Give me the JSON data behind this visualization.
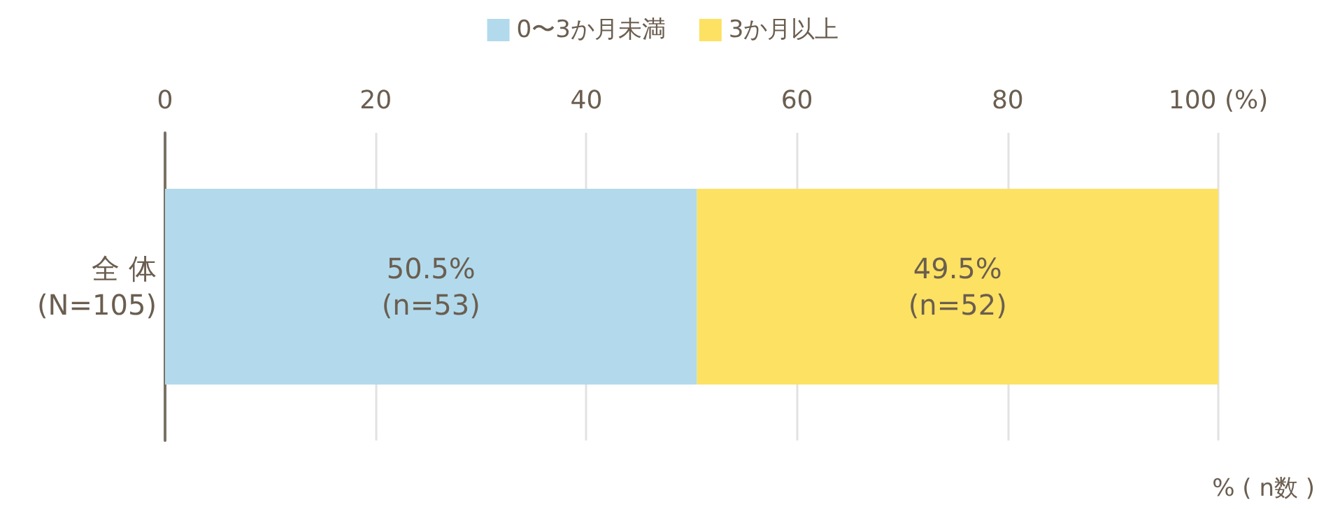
{
  "chart_data": {
    "type": "bar",
    "orientation": "horizontal",
    "stacked": true,
    "categories": [
      "全 体\n(N=105)"
    ],
    "series": [
      {
        "name": "0〜3か月未満",
        "color": "#b2daec",
        "values": [
          50.5
        ],
        "value_labels": [
          "50.5%\n(n=53)"
        ]
      },
      {
        "name": "3か月以上",
        "color": "#fde162",
        "values": [
          49.5
        ],
        "value_labels": [
          "49.5%\n(n=52)"
        ]
      }
    ],
    "xlim": [
      0,
      100
    ],
    "xticks": [
      0,
      20,
      40,
      60,
      80,
      {
        "value": 100,
        "label": "100 (%)"
      }
    ],
    "xlabel": "% ( n数 )",
    "grid": "x",
    "legend": "top"
  }
}
